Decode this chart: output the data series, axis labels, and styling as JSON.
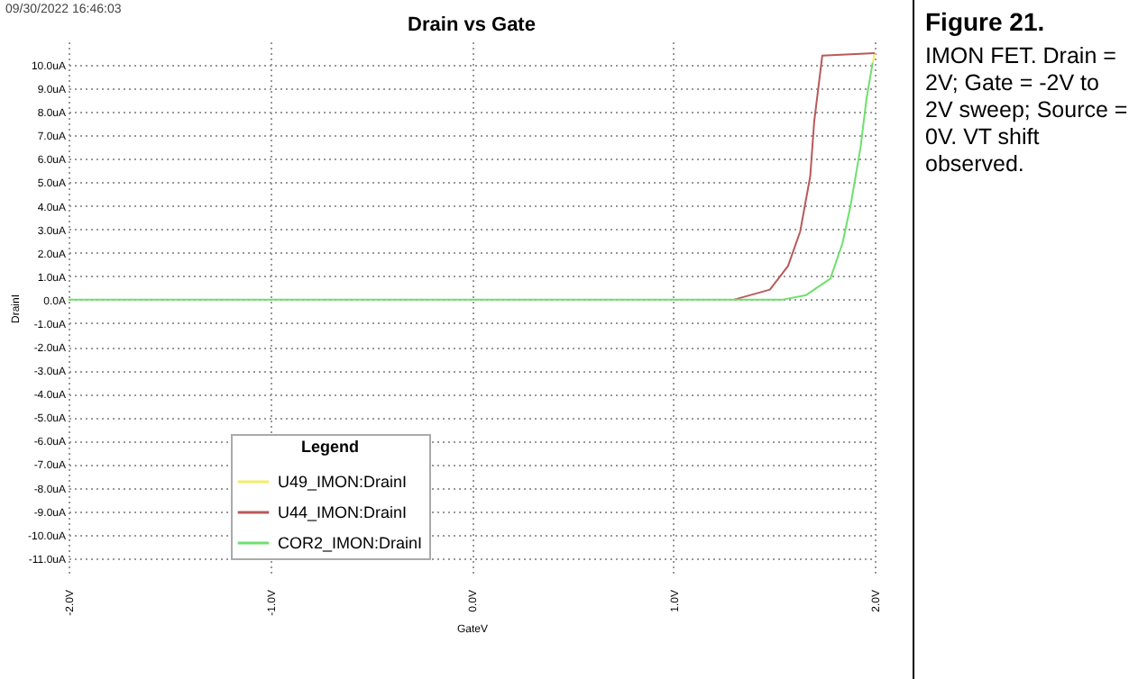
{
  "chart_data": {
    "type": "line",
    "title": "Drain vs Gate",
    "xlabel": "GateV",
    "ylabel": "DrainI",
    "legend_title": "Legend",
    "annotations": [
      "09/30/2022 16:46:03",
      "Figure 21.",
      "IMON FET. Drain = 2V; Gate = -2V to 2V sweep; Source = 0V. VT shift observed."
    ],
    "series": [
      {
        "name": "U49_IMON:DrainI",
        "color": "#f2ee6a",
        "x": [
          1.99,
          2
        ],
        "values": [
          10.1,
          10.5
        ]
      },
      {
        "name": "U44_IMON:DrainI",
        "color": "#b85a5a",
        "x": [
          1.3,
          1.48,
          1.57,
          1.63,
          1.68,
          1.7,
          1.74,
          2
        ],
        "values": [
          0,
          0.43,
          1.44,
          2.9,
          5.25,
          7.6,
          10.4,
          10.5
        ]
      },
      {
        "name": "COR2_IMON:DrainI",
        "color": "#6ee06e",
        "x": [
          -2,
          1.54,
          1.66,
          1.78,
          1.84,
          1.88,
          1.93,
          1.96,
          1.99
        ],
        "values": [
          0,
          0,
          0.2,
          0.9,
          2.4,
          4.0,
          6.5,
          8.6,
          10.1
        ]
      }
    ],
    "xlim": [
      -2,
      2
    ],
    "xticks": [
      {
        "value": -2,
        "label": "-2.0V"
      },
      {
        "value": -1,
        "label": "-1.0V"
      },
      {
        "value": 0,
        "label": "0.0V"
      },
      {
        "value": 1,
        "label": "1.0V"
      },
      {
        "value": 2,
        "label": "2.0V"
      }
    ],
    "ylim": [
      -11.7,
      11
    ],
    "yticks": [
      {
        "value": -11,
        "label": "-11.0uA"
      },
      {
        "value": -10,
        "label": "-10.0uA"
      },
      {
        "value": -9,
        "label": "-9.0uA"
      },
      {
        "value": -8,
        "label": "-8.0uA"
      },
      {
        "value": -7,
        "label": "-7.0uA"
      },
      {
        "value": -6,
        "label": "-6.0uA"
      },
      {
        "value": -5,
        "label": "-5.0uA"
      },
      {
        "value": -4,
        "label": "-4.0uA"
      },
      {
        "value": -3,
        "label": "-3.0uA"
      },
      {
        "value": -2,
        "label": "-2.0uA"
      },
      {
        "value": -1,
        "label": "-1.0uA"
      },
      {
        "value": 0,
        "label": "0.0A"
      },
      {
        "value": 1,
        "label": "1.0uA"
      },
      {
        "value": 2,
        "label": "2.0uA"
      },
      {
        "value": 3,
        "label": "3.0uA"
      },
      {
        "value": 4,
        "label": "4.0uA"
      },
      {
        "value": 5,
        "label": "5.0uA"
      },
      {
        "value": 6,
        "label": "6.0uA"
      },
      {
        "value": 7,
        "label": "7.0uA"
      },
      {
        "value": 8,
        "label": "8.0uA"
      },
      {
        "value": 9,
        "label": "9.0uA"
      },
      {
        "value": 10,
        "label": "10.0uA"
      }
    ],
    "grid": true,
    "legend": "bottom left",
    "marker": "none",
    "line_style": "solid"
  }
}
